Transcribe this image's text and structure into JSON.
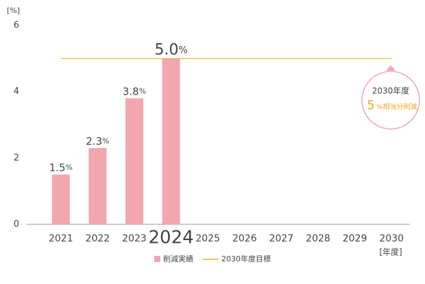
{
  "chart_data": {
    "type": "bar",
    "y_unit": "[%]",
    "x_unit": "[年度]",
    "categories": [
      "2021",
      "2022",
      "2023",
      "2024",
      "2025",
      "2026",
      "2027",
      "2028",
      "2029",
      "2030"
    ],
    "series": [
      {
        "name": "削減実績",
        "color": "#f2a7ae",
        "values": [
          1.5,
          2.3,
          3.8,
          5.0,
          null,
          null,
          null,
          null,
          null,
          null
        ],
        "value_labels": [
          "1.5%",
          "2.3%",
          "3.8%",
          "5.0%",
          null,
          null,
          null,
          null,
          null,
          null
        ]
      }
    ],
    "target": {
      "name": "2030年度目標",
      "value": 5,
      "color": "#f5a623"
    },
    "annotation": {
      "title": "2030年度",
      "text": "%相当分削減"
    },
    "ylim": [
      0,
      6
    ],
    "yticks": [
      0,
      2,
      4,
      6
    ],
    "grid": false
  }
}
